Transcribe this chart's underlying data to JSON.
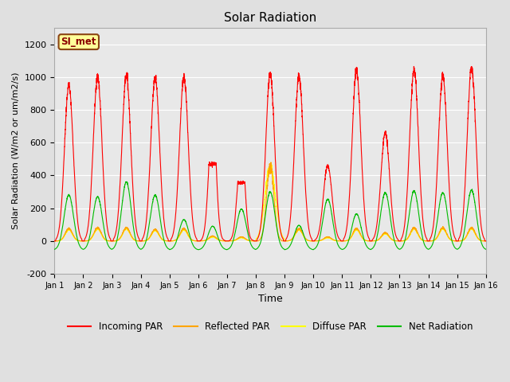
{
  "title": "Solar Radiation",
  "xlabel": "Time",
  "ylabel": "Solar Radiation (W/m2 or um/m2/s)",
  "ylim": [
    -200,
    1300
  ],
  "yticks": [
    -200,
    0,
    200,
    400,
    600,
    800,
    1000,
    1200
  ],
  "num_days": 15,
  "points_per_day": 288,
  "station_label": "SI_met",
  "colors": {
    "incoming": "#FF0000",
    "reflected": "#FFA500",
    "diffuse": "#FFFF00",
    "net": "#00BB00"
  },
  "legend_labels": [
    "Incoming PAR",
    "Reflected PAR",
    "Diffuse PAR",
    "Net Radiation"
  ],
  "bg_color": "#E8E8E8",
  "night_net": -55,
  "day_peaks_incoming": [
    950,
    1000,
    1010,
    1000,
    1000,
    470,
    355,
    1020,
    1005,
    460,
    1040,
    660,
    1050,
    1005,
    1060
  ],
  "cloudy_days": [
    5,
    6
  ],
  "day_peaks_reflected": [
    75,
    80,
    80,
    70,
    75,
    30,
    25,
    450,
    75,
    25,
    75,
    50,
    80,
    80,
    80
  ],
  "day_peaks_diffuse": [
    70,
    75,
    75,
    65,
    70,
    25,
    20,
    450,
    70,
    20,
    70,
    45,
    75,
    75,
    75
  ],
  "day_peaks_net": [
    280,
    270,
    360,
    280,
    130,
    90,
    195,
    300,
    95,
    255,
    165,
    295,
    305,
    295,
    310
  ],
  "figsize": [
    6.4,
    4.8
  ],
  "dpi": 100
}
